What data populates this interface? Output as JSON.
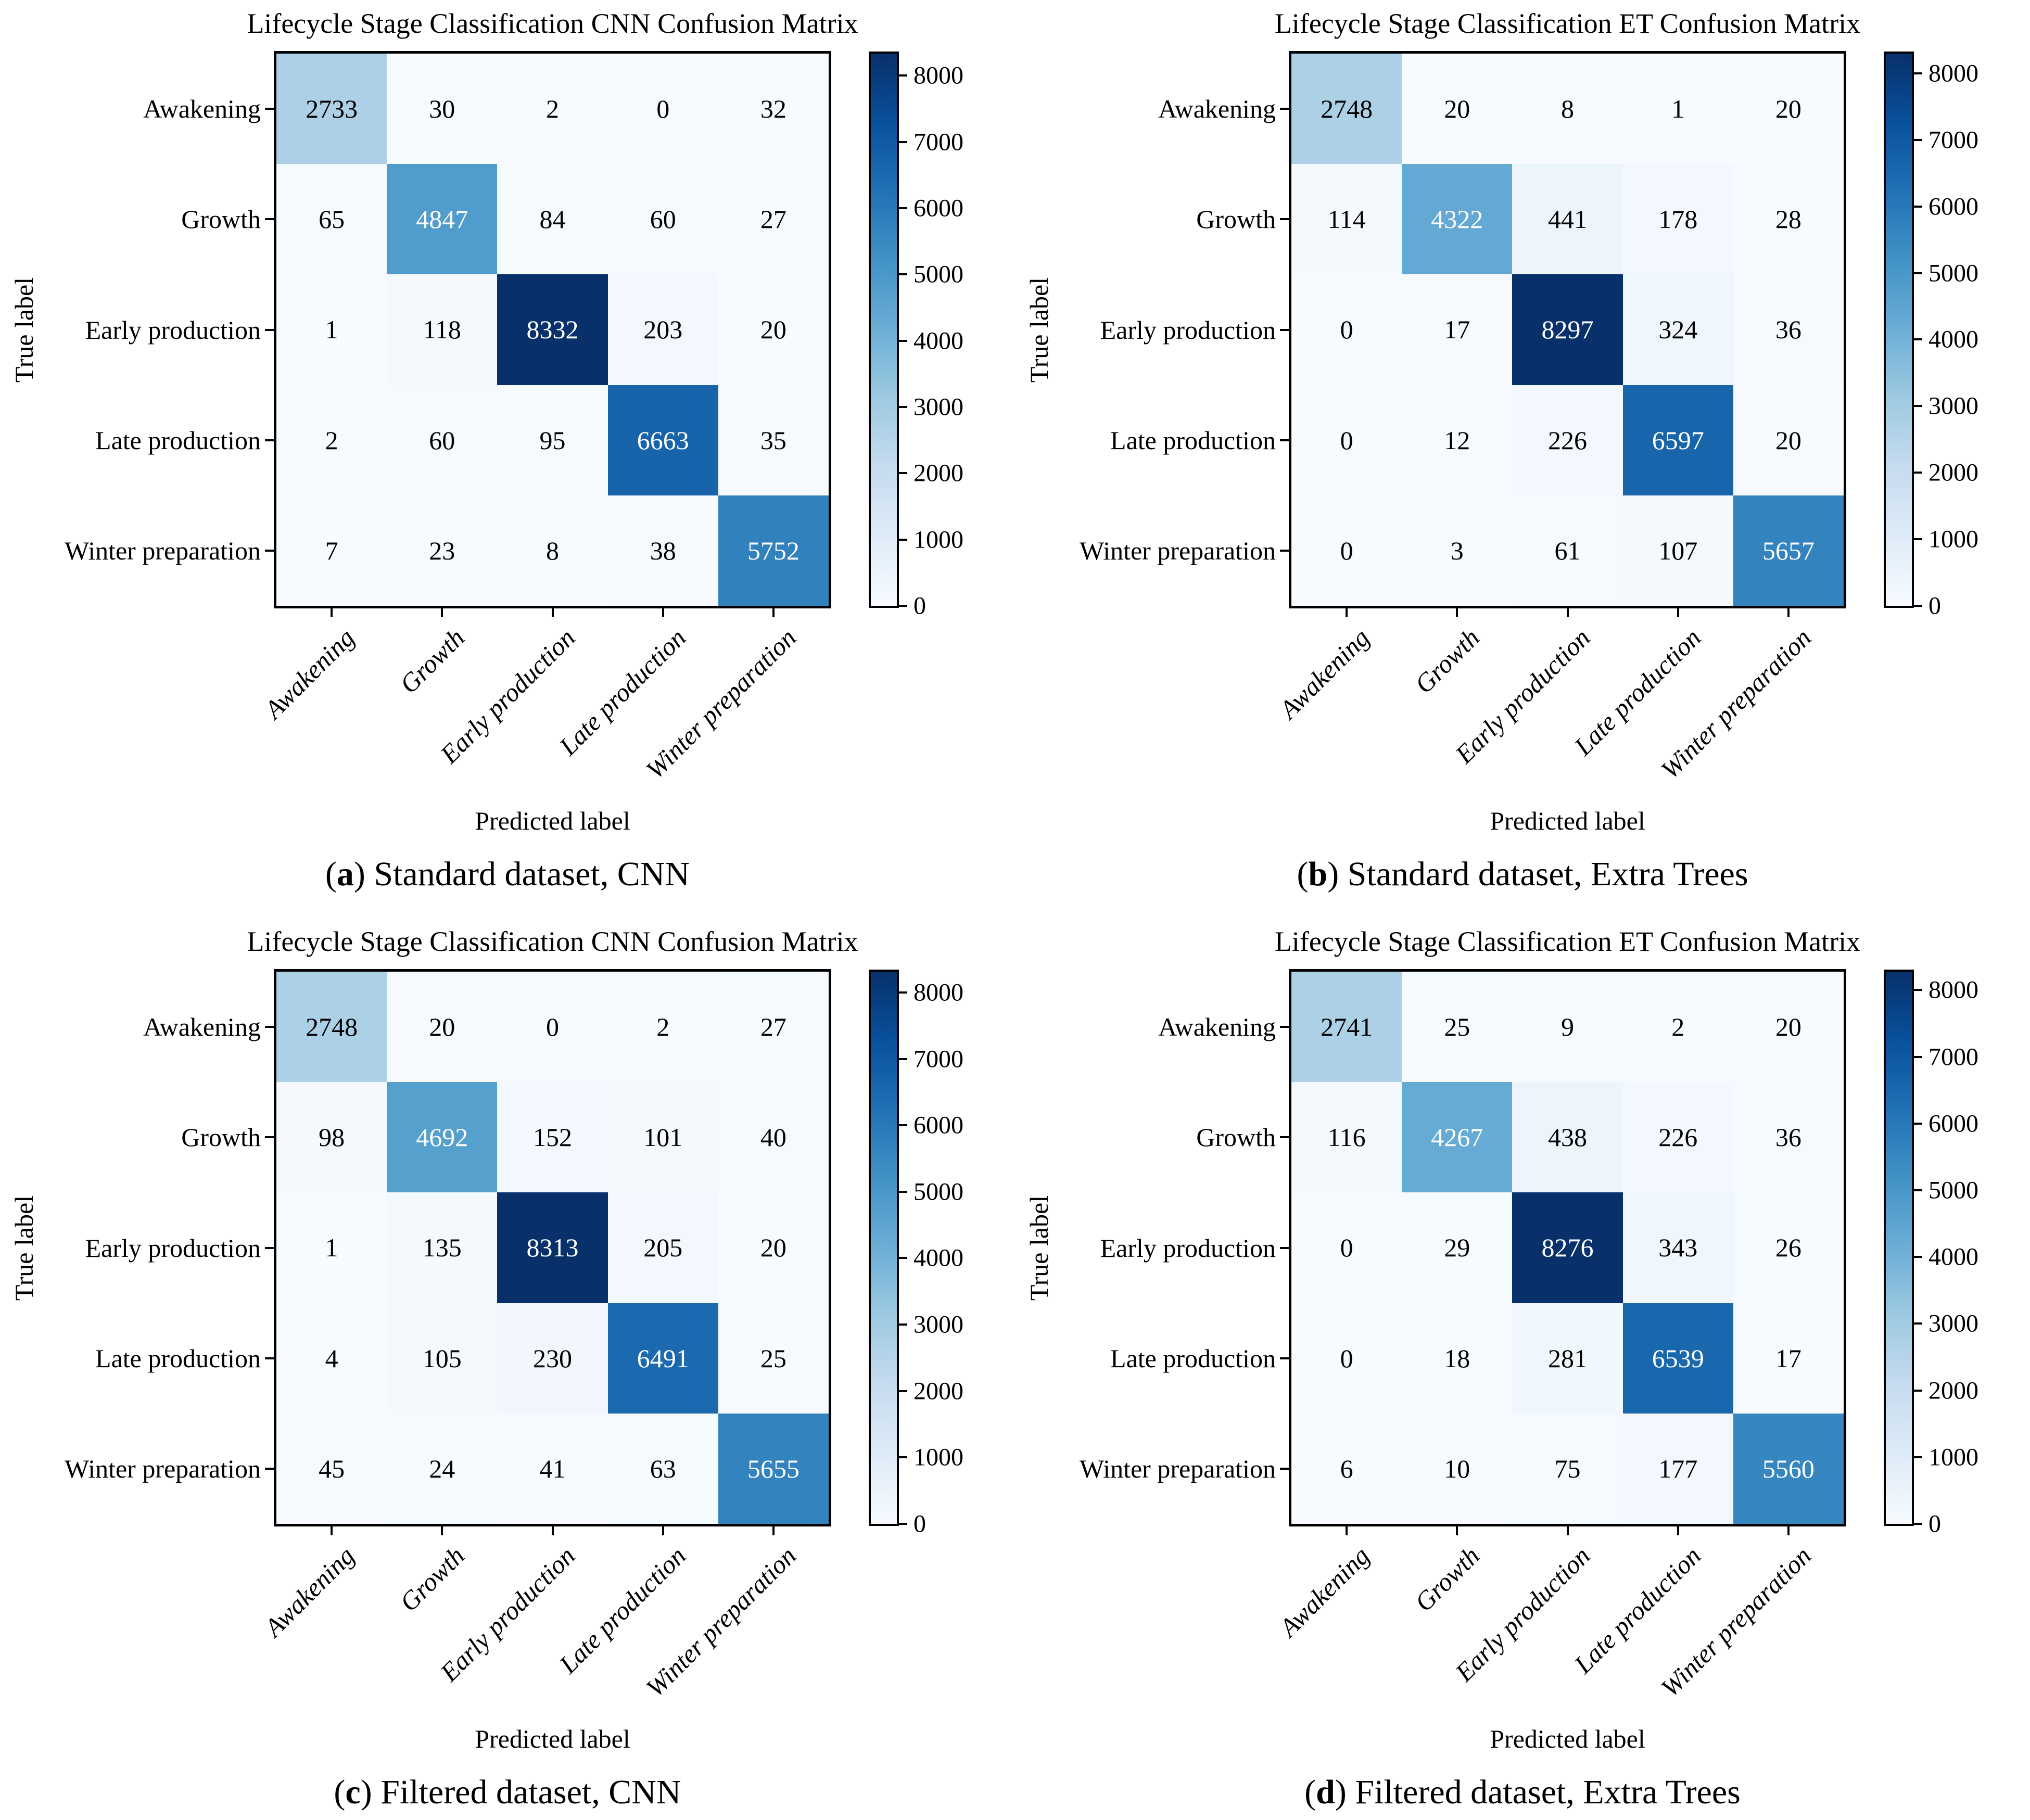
{
  "figure": {
    "background": "#ffffff",
    "colormap": {
      "name": "Blues",
      "anchors": [
        "#f7fbff",
        "#deebf7",
        "#c6dbef",
        "#9ecae1",
        "#6baed6",
        "#4292c6",
        "#2171b5",
        "#08519c",
        "#08306b"
      ]
    },
    "cell_text_dark": "#000000",
    "cell_text_light": "#ffffff"
  },
  "chart_data": [
    {
      "id": "a",
      "type": "heatmap",
      "title": "Lifecycle Stage Classification CNN Confusion Matrix",
      "xlabel": "Predicted label",
      "ylabel": "True label",
      "x_categories": [
        "Awakening",
        "Growth",
        "Early production",
        "Late production",
        "Winter preparation"
      ],
      "y_categories": [
        "Awakening",
        "Growth",
        "Early production",
        "Late production",
        "Winter preparation"
      ],
      "matrix": [
        [
          2733,
          30,
          2,
          0,
          32
        ],
        [
          65,
          4847,
          84,
          60,
          27
        ],
        [
          1,
          118,
          8332,
          203,
          20
        ],
        [
          2,
          60,
          95,
          6663,
          35
        ],
        [
          7,
          23,
          8,
          38,
          5752
        ]
      ],
      "vmin": 0,
      "vmax": 8332,
      "colorbar_ticks": [
        0,
        1000,
        2000,
        3000,
        4000,
        5000,
        6000,
        7000,
        8000
      ],
      "caption": {
        "open": "(",
        "letter": "a",
        "close": ")",
        "text": " Standard dataset, CNN"
      }
    },
    {
      "id": "b",
      "type": "heatmap",
      "title": "Lifecycle Stage Classification ET Confusion Matrix",
      "xlabel": "Predicted label",
      "ylabel": "True label",
      "x_categories": [
        "Awakening",
        "Growth",
        "Early production",
        "Late production",
        "Winter preparation"
      ],
      "y_categories": [
        "Awakening",
        "Growth",
        "Early production",
        "Late production",
        "Winter preparation"
      ],
      "matrix": [
        [
          2748,
          20,
          8,
          1,
          20
        ],
        [
          114,
          4322,
          441,
          178,
          28
        ],
        [
          0,
          17,
          8297,
          324,
          36
        ],
        [
          0,
          12,
          226,
          6597,
          20
        ],
        [
          0,
          3,
          61,
          107,
          5657
        ]
      ],
      "vmin": 0,
      "vmax": 8297,
      "colorbar_ticks": [
        0,
        1000,
        2000,
        3000,
        4000,
        5000,
        6000,
        7000,
        8000
      ],
      "caption": {
        "open": "(",
        "letter": "b",
        "close": ")",
        "text": " Standard dataset, Extra Trees"
      }
    },
    {
      "id": "c",
      "type": "heatmap",
      "title": "Lifecycle Stage Classification CNN Confusion Matrix",
      "xlabel": "Predicted label",
      "ylabel": "True label",
      "x_categories": [
        "Awakening",
        "Growth",
        "Early production",
        "Late production",
        "Winter preparation"
      ],
      "y_categories": [
        "Awakening",
        "Growth",
        "Early production",
        "Late production",
        "Winter preparation"
      ],
      "matrix": [
        [
          2748,
          20,
          0,
          2,
          27
        ],
        [
          98,
          4692,
          152,
          101,
          40
        ],
        [
          1,
          135,
          8313,
          205,
          20
        ],
        [
          4,
          105,
          230,
          6491,
          25
        ],
        [
          45,
          24,
          41,
          63,
          5655
        ]
      ],
      "vmin": 0,
      "vmax": 8313,
      "colorbar_ticks": [
        0,
        1000,
        2000,
        3000,
        4000,
        5000,
        6000,
        7000,
        8000
      ],
      "caption": {
        "open": "(",
        "letter": "c",
        "close": ")",
        "text": " Filtered dataset, CNN"
      }
    },
    {
      "id": "d",
      "type": "heatmap",
      "title": "Lifecycle Stage Classification ET Confusion Matrix",
      "xlabel": "Predicted label",
      "ylabel": "True label",
      "x_categories": [
        "Awakening",
        "Growth",
        "Early production",
        "Late production",
        "Winter preparation"
      ],
      "y_categories": [
        "Awakening",
        "Growth",
        "Early production",
        "Late production",
        "Winter preparation"
      ],
      "matrix": [
        [
          2741,
          25,
          9,
          2,
          20
        ],
        [
          116,
          4267,
          438,
          226,
          36
        ],
        [
          0,
          29,
          8276,
          343,
          26
        ],
        [
          0,
          18,
          281,
          6539,
          17
        ],
        [
          6,
          10,
          75,
          177,
          5560
        ]
      ],
      "vmin": 0,
      "vmax": 8276,
      "colorbar_ticks": [
        0,
        1000,
        2000,
        3000,
        4000,
        5000,
        6000,
        7000,
        8000
      ],
      "caption": {
        "open": "(",
        "letter": "d",
        "close": ")",
        "text": " Filtered dataset, Extra Trees"
      }
    }
  ]
}
